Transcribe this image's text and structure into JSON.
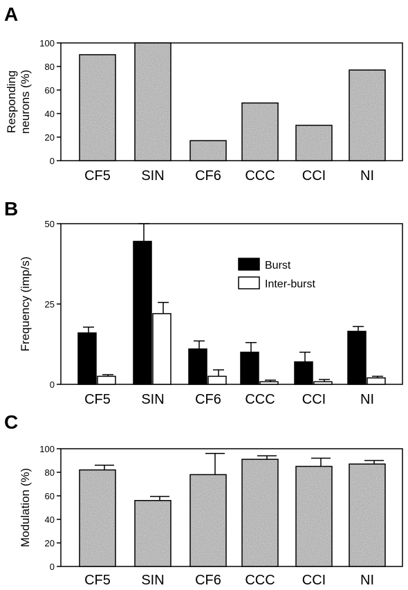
{
  "chart_data": [
    {
      "panel": "A",
      "type": "bar",
      "ylabel": [
        "Responding",
        "neurons (%)"
      ],
      "ylim": [
        0,
        100
      ],
      "yticks": [
        0,
        20,
        40,
        60,
        80,
        100
      ],
      "categories": [
        "CF5",
        "SIN",
        "CF6",
        "CCC",
        "CCI",
        "NI"
      ],
      "values": [
        90,
        100,
        17,
        49,
        30,
        77
      ],
      "grid": false
    },
    {
      "panel": "B",
      "type": "bar",
      "ylabel": [
        "Frequency (imp/s)"
      ],
      "ylim": [
        0,
        50
      ],
      "yticks": [
        0,
        25,
        50
      ],
      "categories": [
        "CF5",
        "SIN",
        "CF6",
        "CCC",
        "CCI",
        "NI"
      ],
      "series": [
        {
          "name": "Burst",
          "color": "#000000",
          "values": [
            16,
            44.5,
            11,
            10,
            7,
            16.5
          ],
          "errors": [
            1.8,
            5.5,
            2.5,
            3,
            3,
            1.5
          ]
        },
        {
          "name": "Inter-burst",
          "color": "#ffffff",
          "values": [
            2.5,
            22,
            2.5,
            0.8,
            0.8,
            2
          ],
          "errors": [
            0.5,
            3.5,
            2,
            0.5,
            0.7,
            0.5
          ]
        }
      ],
      "legend": "upper-middle",
      "grid": false
    },
    {
      "panel": "C",
      "type": "bar",
      "ylabel": [
        "Modulation (%)"
      ],
      "ylim": [
        0,
        100
      ],
      "yticks": [
        0,
        20,
        40,
        60,
        80,
        100
      ],
      "categories": [
        "CF5",
        "SIN",
        "CF6",
        "CCC",
        "CCI",
        "NI"
      ],
      "values": [
        82,
        56,
        78,
        91,
        85,
        87
      ],
      "errors": [
        4,
        3.5,
        18,
        3,
        7,
        3
      ],
      "grid": false
    }
  ]
}
